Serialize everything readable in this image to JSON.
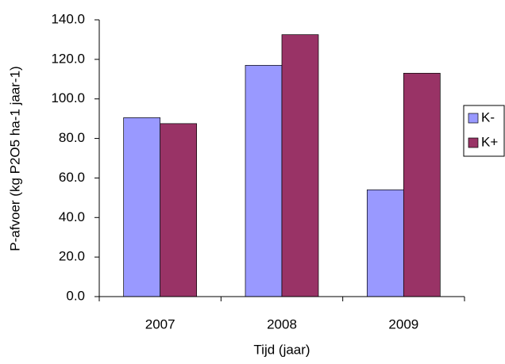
{
  "chart_data": {
    "type": "bar",
    "x_label": "Tijd (jaar)",
    "y_label": "P-afvoer (kg P2O5 ha-1 jaar-1)",
    "categories": [
      "2007",
      "2008",
      "2009"
    ],
    "series": [
      {
        "name": "K-",
        "color": "#9999ff",
        "values": [
          90.5,
          117,
          54
        ]
      },
      {
        "name": "K+",
        "color": "#993366",
        "values": [
          87.5,
          132.5,
          113
        ]
      }
    ],
    "ylim": [
      0,
      140
    ],
    "yticks": [
      {
        "value": 0,
        "label": "0.0"
      },
      {
        "value": 20,
        "label": "20.0"
      },
      {
        "value": 40,
        "label": "40.0"
      },
      {
        "value": 60,
        "label": "60.0"
      },
      {
        "value": 80,
        "label": "80.0"
      },
      {
        "value": 100,
        "label": "100.0"
      },
      {
        "value": 120,
        "label": "120.0"
      },
      {
        "value": 140,
        "label": "140.0"
      }
    ],
    "legend": "right"
  }
}
